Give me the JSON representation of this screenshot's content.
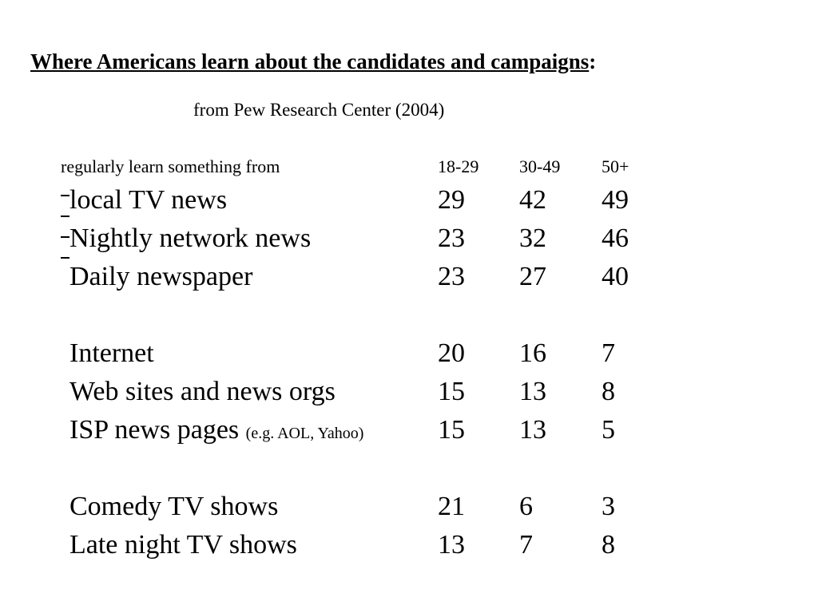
{
  "title": {
    "main": "Where Americans learn about the candidates and campaigns",
    "colon": ":"
  },
  "subtitle": "from Pew Research Center (2004)",
  "table": {
    "header": {
      "label": "regularly learn something from",
      "columns": [
        "18-29",
        "30-49",
        "50+"
      ]
    },
    "rows": [
      {
        "label": "local TV news",
        "note": "",
        "values": [
          "29",
          "42",
          "49"
        ]
      },
      {
        "label": "Nightly network news",
        "note": "",
        "values": [
          "23",
          "32",
          "46"
        ]
      },
      {
        "label": "Daily newspaper",
        "note": "",
        "values": [
          "23",
          "27",
          "40"
        ]
      },
      {
        "label": "Internet",
        "note": "",
        "values": [
          "20",
          "16",
          "7"
        ]
      },
      {
        "label": "Web sites and news orgs",
        "note": "",
        "values": [
          "15",
          "13",
          "8"
        ]
      },
      {
        "label": "ISP news pages",
        "note": "(e.g. AOL, Yahoo)",
        "values": [
          "15",
          "13",
          "5"
        ]
      },
      {
        "label": "Comedy TV shows",
        "note": "",
        "values": [
          "21",
          "6",
          "3"
        ]
      },
      {
        "label": "Late night TV shows",
        "note": "",
        "values": [
          "13",
          "7",
          "8"
        ]
      }
    ]
  }
}
